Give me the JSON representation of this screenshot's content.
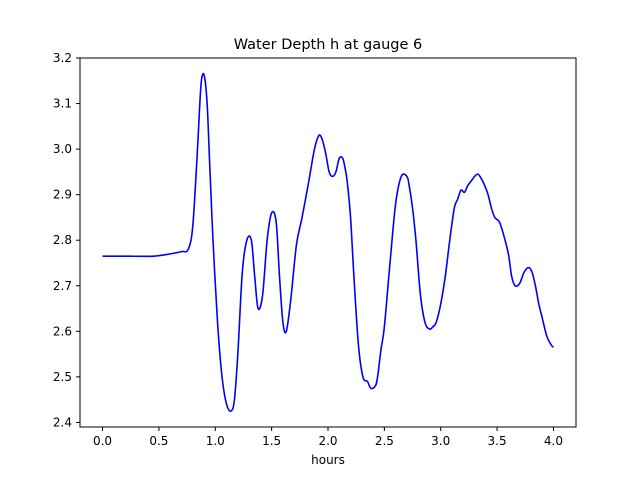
{
  "chart_data": {
    "type": "line",
    "title": "Water Depth h at gauge 6",
    "xlabel": "hours",
    "ylabel": "",
    "xlim": [
      -0.2,
      4.2
    ],
    "ylim": [
      2.39,
      3.2
    ],
    "grid": false,
    "x_ticks": [
      0.0,
      0.5,
      1.0,
      1.5,
      2.0,
      2.5,
      3.0,
      3.5,
      4.0
    ],
    "x_tick_labels": [
      "0.0",
      "0.5",
      "1.0",
      "1.5",
      "2.0",
      "2.5",
      "3.0",
      "3.5",
      "4.0"
    ],
    "y_ticks": [
      2.4,
      2.5,
      2.6,
      2.7,
      2.8,
      2.9,
      3.0,
      3.1,
      3.2
    ],
    "y_tick_labels": [
      "2.4",
      "2.5",
      "2.6",
      "2.7",
      "2.8",
      "2.9",
      "3.0",
      "3.1",
      "3.2"
    ],
    "series": [
      {
        "color": "#0000ff",
        "x": [
          0.0,
          0.2,
          0.45,
          0.6,
          0.7,
          0.76,
          0.8,
          0.84,
          0.87,
          0.89,
          0.91,
          0.93,
          0.95,
          0.98,
          1.02,
          1.06,
          1.1,
          1.14,
          1.17,
          1.2,
          1.24,
          1.28,
          1.32,
          1.35,
          1.38,
          1.42,
          1.46,
          1.5,
          1.54,
          1.57,
          1.6,
          1.63,
          1.67,
          1.72,
          1.77,
          1.83,
          1.88,
          1.92,
          1.95,
          1.98,
          2.01,
          2.04,
          2.07,
          2.1,
          2.13,
          2.15,
          2.17,
          2.2,
          2.23,
          2.27,
          2.31,
          2.35,
          2.38,
          2.42,
          2.44,
          2.47,
          2.5,
          2.55,
          2.6,
          2.65,
          2.7,
          2.72,
          2.75,
          2.78,
          2.82,
          2.86,
          2.9,
          2.93,
          2.96,
          3.0,
          3.04,
          3.08,
          3.12,
          3.15,
          3.18,
          3.21,
          3.24,
          3.27,
          3.3,
          3.33,
          3.36,
          3.39,
          3.42,
          3.45,
          3.48,
          3.52,
          3.56,
          3.6,
          3.63,
          3.66,
          3.7,
          3.74,
          3.78,
          3.81,
          3.84,
          3.87,
          3.9,
          3.94,
          3.98,
          4.0
        ],
        "y": [
          2.765,
          2.765,
          2.765,
          2.77,
          2.775,
          2.78,
          2.83,
          2.99,
          3.13,
          3.165,
          3.15,
          3.09,
          2.97,
          2.8,
          2.62,
          2.5,
          2.44,
          2.425,
          2.45,
          2.55,
          2.73,
          2.8,
          2.8,
          2.72,
          2.65,
          2.68,
          2.8,
          2.86,
          2.84,
          2.72,
          2.62,
          2.6,
          2.67,
          2.79,
          2.85,
          2.93,
          3.0,
          3.03,
          3.02,
          2.99,
          2.95,
          2.94,
          2.95,
          2.98,
          2.98,
          2.96,
          2.93,
          2.85,
          2.72,
          2.57,
          2.5,
          2.49,
          2.475,
          2.48,
          2.5,
          2.56,
          2.61,
          2.75,
          2.88,
          2.94,
          2.94,
          2.92,
          2.87,
          2.8,
          2.68,
          2.62,
          2.605,
          2.61,
          2.62,
          2.66,
          2.72,
          2.8,
          2.87,
          2.89,
          2.91,
          2.905,
          2.92,
          2.93,
          2.94,
          2.945,
          2.935,
          2.92,
          2.9,
          2.87,
          2.85,
          2.84,
          2.81,
          2.77,
          2.72,
          2.7,
          2.705,
          2.73,
          2.74,
          2.73,
          2.7,
          2.66,
          2.63,
          2.59,
          2.57,
          2.565
        ]
      }
    ]
  }
}
